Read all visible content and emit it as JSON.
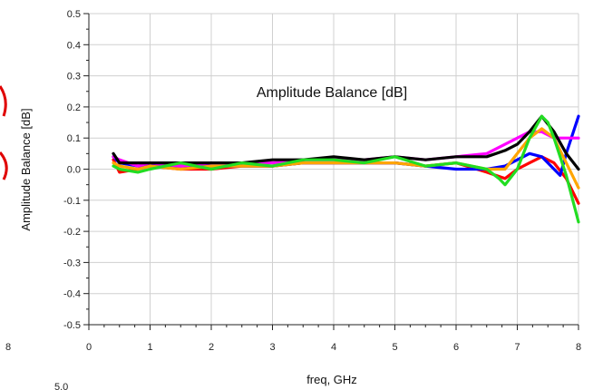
{
  "chart_data": {
    "type": "line",
    "title": "Amplitude Balance [dB]",
    "xlabel": "freq, GHz",
    "ylabel": "Amplitude Balance [dB]",
    "xlim": [
      0,
      8
    ],
    "ylim": [
      -0.5,
      0.5
    ],
    "x_ticks": [
      "0",
      "1",
      "2",
      "3",
      "4",
      "5",
      "6",
      "7",
      "8"
    ],
    "y_ticks": [
      "0.5",
      "0.4",
      "0.3",
      "0.2",
      "0.1",
      "0.0",
      "-0.1",
      "-0.2",
      "-0.3",
      "-0.4",
      "-0.5"
    ],
    "grid": true,
    "series": [
      {
        "color": "#ff0000",
        "x": [
          0.4,
          0.5,
          0.8,
          1.0,
          1.5,
          2.0,
          2.5,
          3.0,
          3.5,
          4.0,
          4.5,
          5.0,
          5.5,
          6.0,
          6.5,
          6.8,
          7.0,
          7.2,
          7.4,
          7.6,
          7.8,
          8.0
        ],
        "y": [
          0.03,
          -0.01,
          0.0,
          0.01,
          0.0,
          0.0,
          0.01,
          0.01,
          0.02,
          0.02,
          0.02,
          0.02,
          0.01,
          0.02,
          -0.01,
          -0.03,
          0.0,
          0.02,
          0.04,
          0.02,
          -0.03,
          -0.11
        ]
      },
      {
        "color": "#0000ff",
        "x": [
          0.4,
          0.5,
          0.8,
          1.0,
          1.5,
          2.0,
          2.5,
          3.0,
          3.5,
          4.0,
          4.5,
          5.0,
          5.5,
          6.0,
          6.5,
          6.8,
          7.0,
          7.2,
          7.4,
          7.6,
          7.7,
          7.8,
          8.0
        ],
        "y": [
          0.04,
          0.02,
          0.01,
          0.01,
          0.01,
          0.01,
          0.01,
          0.01,
          0.02,
          0.02,
          0.02,
          0.02,
          0.01,
          0.0,
          0.0,
          0.01,
          0.03,
          0.05,
          0.04,
          0.0,
          -0.02,
          0.05,
          0.17
        ]
      },
      {
        "color": "#ff00ff",
        "x": [
          0.4,
          0.5,
          0.8,
          1.0,
          1.5,
          2.0,
          2.5,
          3.0,
          3.5,
          4.0,
          4.5,
          5.0,
          5.5,
          6.0,
          6.5,
          6.8,
          7.0,
          7.2,
          7.4,
          7.6,
          7.8,
          8.0
        ],
        "y": [
          0.04,
          0.03,
          0.01,
          0.02,
          0.01,
          0.02,
          0.02,
          0.02,
          0.03,
          0.03,
          0.03,
          0.04,
          0.03,
          0.04,
          0.05,
          0.08,
          0.1,
          0.12,
          0.12,
          0.1,
          0.1,
          0.1
        ]
      },
      {
        "color": "#ffa500",
        "x": [
          0.4,
          0.5,
          0.8,
          1.0,
          1.5,
          2.0,
          2.5,
          3.0,
          3.5,
          4.0,
          4.5,
          5.0,
          5.5,
          6.0,
          6.5,
          6.8,
          7.0,
          7.2,
          7.4,
          7.6,
          7.8,
          8.0
        ],
        "y": [
          0.02,
          0.01,
          0.0,
          0.01,
          0.0,
          0.01,
          0.01,
          0.01,
          0.02,
          0.02,
          0.02,
          0.02,
          0.01,
          0.02,
          0.0,
          0.0,
          0.05,
          0.1,
          0.13,
          0.1,
          0.02,
          -0.06
        ]
      },
      {
        "color": "#000000",
        "x": [
          0.4,
          0.5,
          0.8,
          1.0,
          1.5,
          2.0,
          2.5,
          3.0,
          3.5,
          4.0,
          4.5,
          5.0,
          5.5,
          6.0,
          6.5,
          6.8,
          7.0,
          7.2,
          7.4,
          7.6,
          7.8,
          8.0
        ],
        "y": [
          0.05,
          0.02,
          0.02,
          0.02,
          0.02,
          0.02,
          0.02,
          0.03,
          0.03,
          0.04,
          0.03,
          0.04,
          0.03,
          0.04,
          0.04,
          0.06,
          0.08,
          0.12,
          0.17,
          0.12,
          0.05,
          0.0
        ]
      },
      {
        "color": "#22dd22",
        "x": [
          0.4,
          0.5,
          0.8,
          1.0,
          1.5,
          2.0,
          2.5,
          3.0,
          3.5,
          4.0,
          4.5,
          5.0,
          5.5,
          6.0,
          6.5,
          6.7,
          6.8,
          7.0,
          7.2,
          7.4,
          7.5,
          7.6,
          7.8,
          8.0
        ],
        "y": [
          0.01,
          0.0,
          -0.01,
          0.0,
          0.02,
          0.0,
          0.02,
          0.01,
          0.03,
          0.03,
          0.02,
          0.04,
          0.01,
          0.02,
          0.0,
          -0.03,
          -0.05,
          0.0,
          0.1,
          0.17,
          0.15,
          0.1,
          -0.02,
          -0.17
        ]
      }
    ]
  },
  "edges": {
    "left_tick": "8",
    "bottom_tick": "5.0"
  }
}
